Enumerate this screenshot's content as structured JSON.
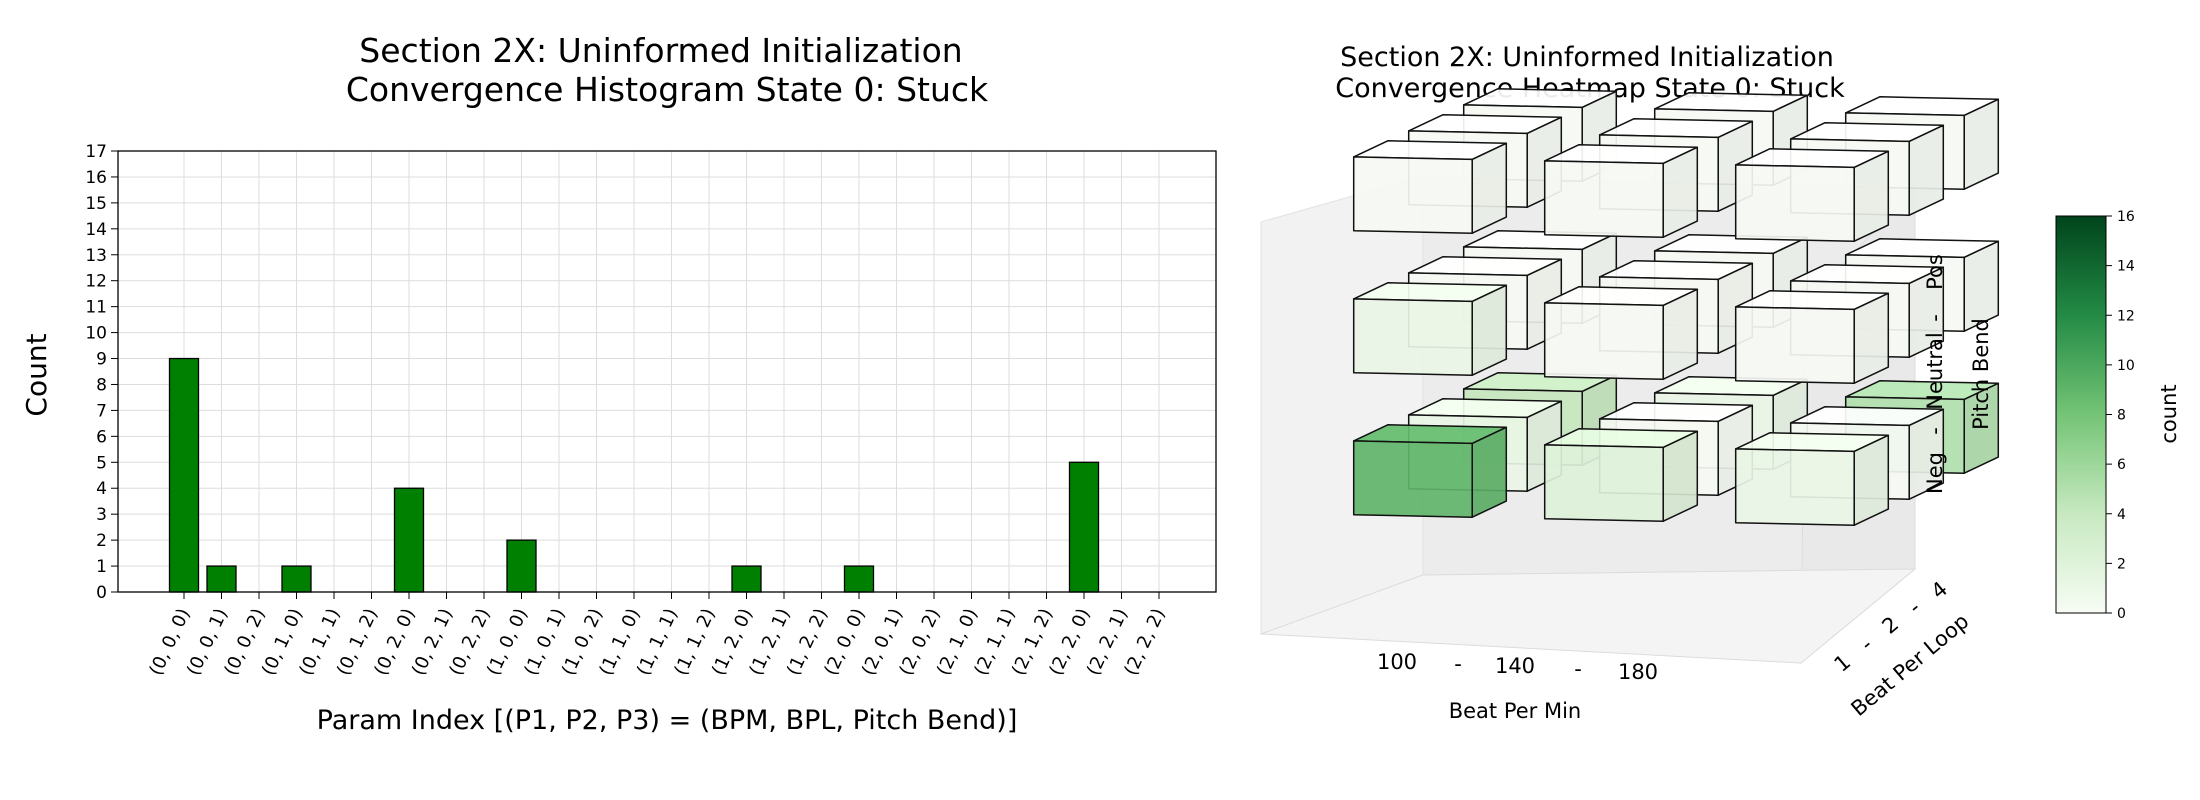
{
  "chart_data": [
    {
      "type": "bar",
      "title_lines": [
        "Section 2X: Uninformed Initialization",
        "Convergence Histogram State 0: Stuck"
      ],
      "xlabel": "Param Index [(P1, P2, P3) = (BPM, BPL, Pitch Bend)]",
      "ylabel": "Count",
      "ylim": [
        0,
        17
      ],
      "yticks": [
        0,
        1,
        2,
        3,
        4,
        5,
        6,
        7,
        8,
        9,
        10,
        11,
        12,
        13,
        14,
        15,
        16,
        17
      ],
      "grid": true,
      "bar_color": "#008000",
      "categories": [
        "(0, 0, 0)",
        "(0, 0, 1)",
        "(0, 0, 2)",
        "(0, 1, 0)",
        "(0, 1, 1)",
        "(0, 1, 2)",
        "(0, 2, 0)",
        "(0, 2, 1)",
        "(0, 2, 2)",
        "(1, 0, 0)",
        "(1, 0, 1)",
        "(1, 0, 2)",
        "(1, 1, 0)",
        "(1, 1, 1)",
        "(1, 1, 2)",
        "(1, 2, 0)",
        "(1, 2, 1)",
        "(1, 2, 2)",
        "(2, 0, 0)",
        "(2, 0, 1)",
        "(2, 0, 2)",
        "(2, 1, 0)",
        "(2, 1, 1)",
        "(2, 1, 2)",
        "(2, 2, 0)",
        "(2, 2, 1)",
        "(2, 2, 2)"
      ],
      "values": [
        9,
        1,
        0,
        1,
        0,
        0,
        4,
        0,
        0,
        2,
        0,
        0,
        0,
        0,
        0,
        1,
        0,
        0,
        1,
        0,
        0,
        0,
        0,
        0,
        5,
        0,
        0
      ]
    },
    {
      "type": "heatmap",
      "title_lines": [
        "Section 2X: Uninformed Initialization",
        "Convergence Heatmap State 0: Stuck"
      ],
      "x_axis": {
        "label": "Beat Per Min",
        "ticks_text": [
          "100",
          "-",
          "140",
          "-",
          "180"
        ]
      },
      "y_axis": {
        "label": "Beat Per Loop",
        "ticks_text": [
          "1",
          "-",
          "2",
          "-",
          "4"
        ]
      },
      "z_axis": {
        "label": "Pitch Bend",
        "ticks_text": [
          "Neg",
          "-",
          "Neutral",
          "-",
          "Pos"
        ]
      },
      "colorbar": {
        "label": "count",
        "range": [
          0,
          16
        ],
        "ticks": [
          0,
          2,
          4,
          6,
          8,
          10,
          12,
          14,
          16
        ],
        "colors": [
          "#f7fcf5",
          "#c7e9c0",
          "#74c476",
          "#238b45",
          "#00441b"
        ]
      },
      "cells": [
        {
          "bpm": 0,
          "bpl": 0,
          "pitch": 0,
          "count": 9
        },
        {
          "bpm": 0,
          "bpl": 0,
          "pitch": 1,
          "count": 1
        },
        {
          "bpm": 0,
          "bpl": 0,
          "pitch": 2,
          "count": 0
        },
        {
          "bpm": 0,
          "bpl": 1,
          "pitch": 0,
          "count": 1
        },
        {
          "bpm": 0,
          "bpl": 1,
          "pitch": 1,
          "count": 0
        },
        {
          "bpm": 0,
          "bpl": 1,
          "pitch": 2,
          "count": 0
        },
        {
          "bpm": 0,
          "bpl": 2,
          "pitch": 0,
          "count": 4
        },
        {
          "bpm": 0,
          "bpl": 2,
          "pitch": 1,
          "count": 0
        },
        {
          "bpm": 0,
          "bpl": 2,
          "pitch": 2,
          "count": 0
        },
        {
          "bpm": 1,
          "bpl": 0,
          "pitch": 0,
          "count": 2
        },
        {
          "bpm": 1,
          "bpl": 0,
          "pitch": 1,
          "count": 0
        },
        {
          "bpm": 1,
          "bpl": 0,
          "pitch": 2,
          "count": 0
        },
        {
          "bpm": 1,
          "bpl": 1,
          "pitch": 0,
          "count": 0
        },
        {
          "bpm": 1,
          "bpl": 1,
          "pitch": 1,
          "count": 0
        },
        {
          "bpm": 1,
          "bpl": 1,
          "pitch": 2,
          "count": 0
        },
        {
          "bpm": 1,
          "bpl": 2,
          "pitch": 0,
          "count": 1
        },
        {
          "bpm": 1,
          "bpl": 2,
          "pitch": 1,
          "count": 0
        },
        {
          "bpm": 1,
          "bpl": 2,
          "pitch": 2,
          "count": 0
        },
        {
          "bpm": 2,
          "bpl": 0,
          "pitch": 0,
          "count": 1
        },
        {
          "bpm": 2,
          "bpl": 0,
          "pitch": 1,
          "count": 0
        },
        {
          "bpm": 2,
          "bpl": 0,
          "pitch": 2,
          "count": 0
        },
        {
          "bpm": 2,
          "bpl": 1,
          "pitch": 0,
          "count": 0
        },
        {
          "bpm": 2,
          "bpl": 1,
          "pitch": 1,
          "count": 0
        },
        {
          "bpm": 2,
          "bpl": 1,
          "pitch": 2,
          "count": 0
        },
        {
          "bpm": 2,
          "bpl": 2,
          "pitch": 0,
          "count": 5
        },
        {
          "bpm": 2,
          "bpl": 2,
          "pitch": 1,
          "count": 0
        },
        {
          "bpm": 2,
          "bpl": 2,
          "pitch": 2,
          "count": 0
        }
      ]
    }
  ]
}
